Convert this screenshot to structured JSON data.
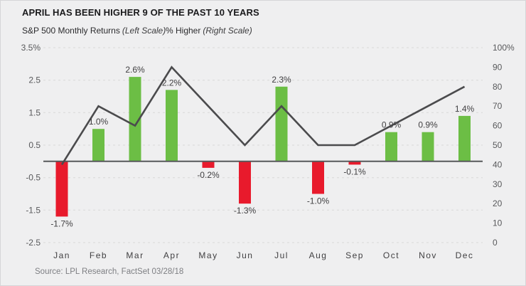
{
  "header": {
    "title": "APRIL HAS BEEN HIGHER 9 OF THE PAST 10 YEARS"
  },
  "legend": {
    "left_series": "S&P 500 Monthly Returns",
    "left_scale_note": "(Left Scale)",
    "right_series": "% Higher",
    "right_scale_note": "(Right Scale)"
  },
  "source": "Source: LPL Research, FactSet 03/28/18",
  "colors": {
    "background": "#efeff0",
    "positive_bar": "#6cbe45",
    "negative_bar": "#e81a2c",
    "line": "#4b4b4d",
    "grid": "#d8d8d8",
    "zero_line": "#57585a",
    "tick_text": "#58595b",
    "label_text": "#414042",
    "month_text": "#414042"
  },
  "chart_data": {
    "type": "combo: bar + line",
    "title": "APRIL HAS BEEN HIGHER 9 OF THE PAST 10 YEARS",
    "categories": [
      "Jan",
      "Feb",
      "Mar",
      "Apr",
      "May",
      "Jun",
      "Jul",
      "Aug",
      "Sep",
      "Oct",
      "Nov",
      "Dec"
    ],
    "series": [
      {
        "name": "S&P 500 Monthly Returns",
        "type": "bar",
        "scale": "left",
        "values": [
          -1.7,
          1.0,
          2.6,
          2.2,
          -0.2,
          -1.3,
          2.3,
          -1.0,
          -0.1,
          0.9,
          0.9,
          1.4
        ],
        "data_labels": [
          "-1.7%",
          "1.0%",
          "2.6%",
          "2.2%",
          "-0.2%",
          "-1.3%",
          "2.3%",
          "-1.0%",
          "-0.1%",
          "0.9%",
          "0.9%",
          "1.4%"
        ]
      },
      {
        "name": "% Higher",
        "type": "line",
        "scale": "right",
        "values": [
          40,
          70,
          60,
          90,
          70,
          50,
          70,
          50,
          50,
          60,
          70,
          80
        ]
      }
    ],
    "left_axis": {
      "tick_labels": [
        "3.5%",
        "2.5",
        "1.5",
        "0.5",
        "-0.5",
        "-1.5",
        "-2.5"
      ],
      "tick_values": [
        3.5,
        2.5,
        1.5,
        0.5,
        -0.5,
        -1.5,
        -2.5
      ],
      "range": [
        -2.5,
        3.5
      ]
    },
    "right_axis": {
      "tick_labels": [
        "100%",
        "90",
        "80",
        "70",
        "60",
        "50",
        "40",
        "30",
        "20",
        "10",
        "0"
      ],
      "tick_values": [
        100,
        90,
        80,
        70,
        60,
        50,
        40,
        30,
        20,
        10,
        0
      ],
      "range": [
        0,
        100
      ]
    },
    "grid": "dotted horizontal gridlines, solid zero line",
    "legend_position": "top-left"
  }
}
